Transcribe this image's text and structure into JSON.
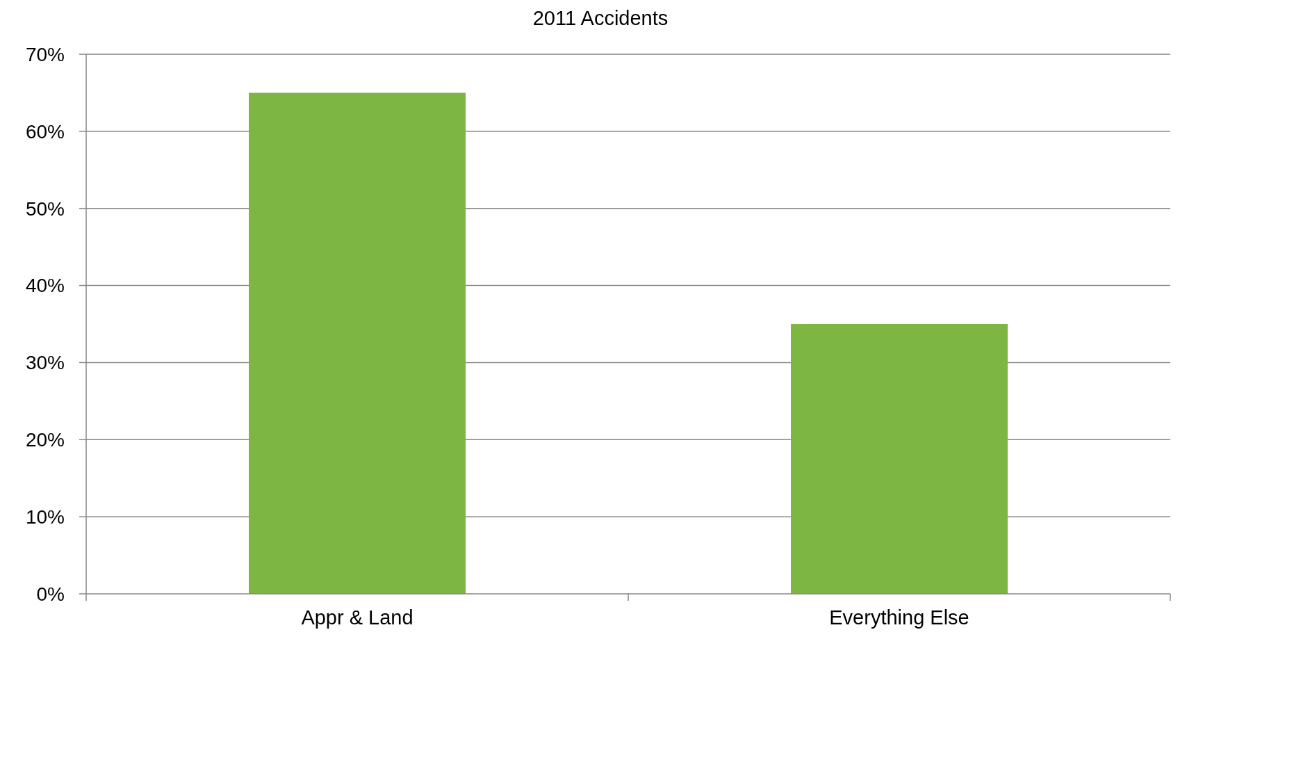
{
  "chart_data": {
    "type": "bar",
    "title": "2011 Accidents",
    "categories": [
      "Appr & Land",
      "Everything Else"
    ],
    "values": [
      65,
      35
    ],
    "color": "#7db643",
    "ylim": [
      0,
      70
    ],
    "yticks": [
      {
        "value": 0,
        "label": "0%"
      },
      {
        "value": 10,
        "label": "10%"
      },
      {
        "value": 20,
        "label": "20%"
      },
      {
        "value": 30,
        "label": "30%"
      },
      {
        "value": 40,
        "label": "40%"
      },
      {
        "value": 50,
        "label": "50%"
      },
      {
        "value": 60,
        "label": "60%"
      },
      {
        "value": 70,
        "label": "70%"
      }
    ],
    "grid": "y"
  }
}
